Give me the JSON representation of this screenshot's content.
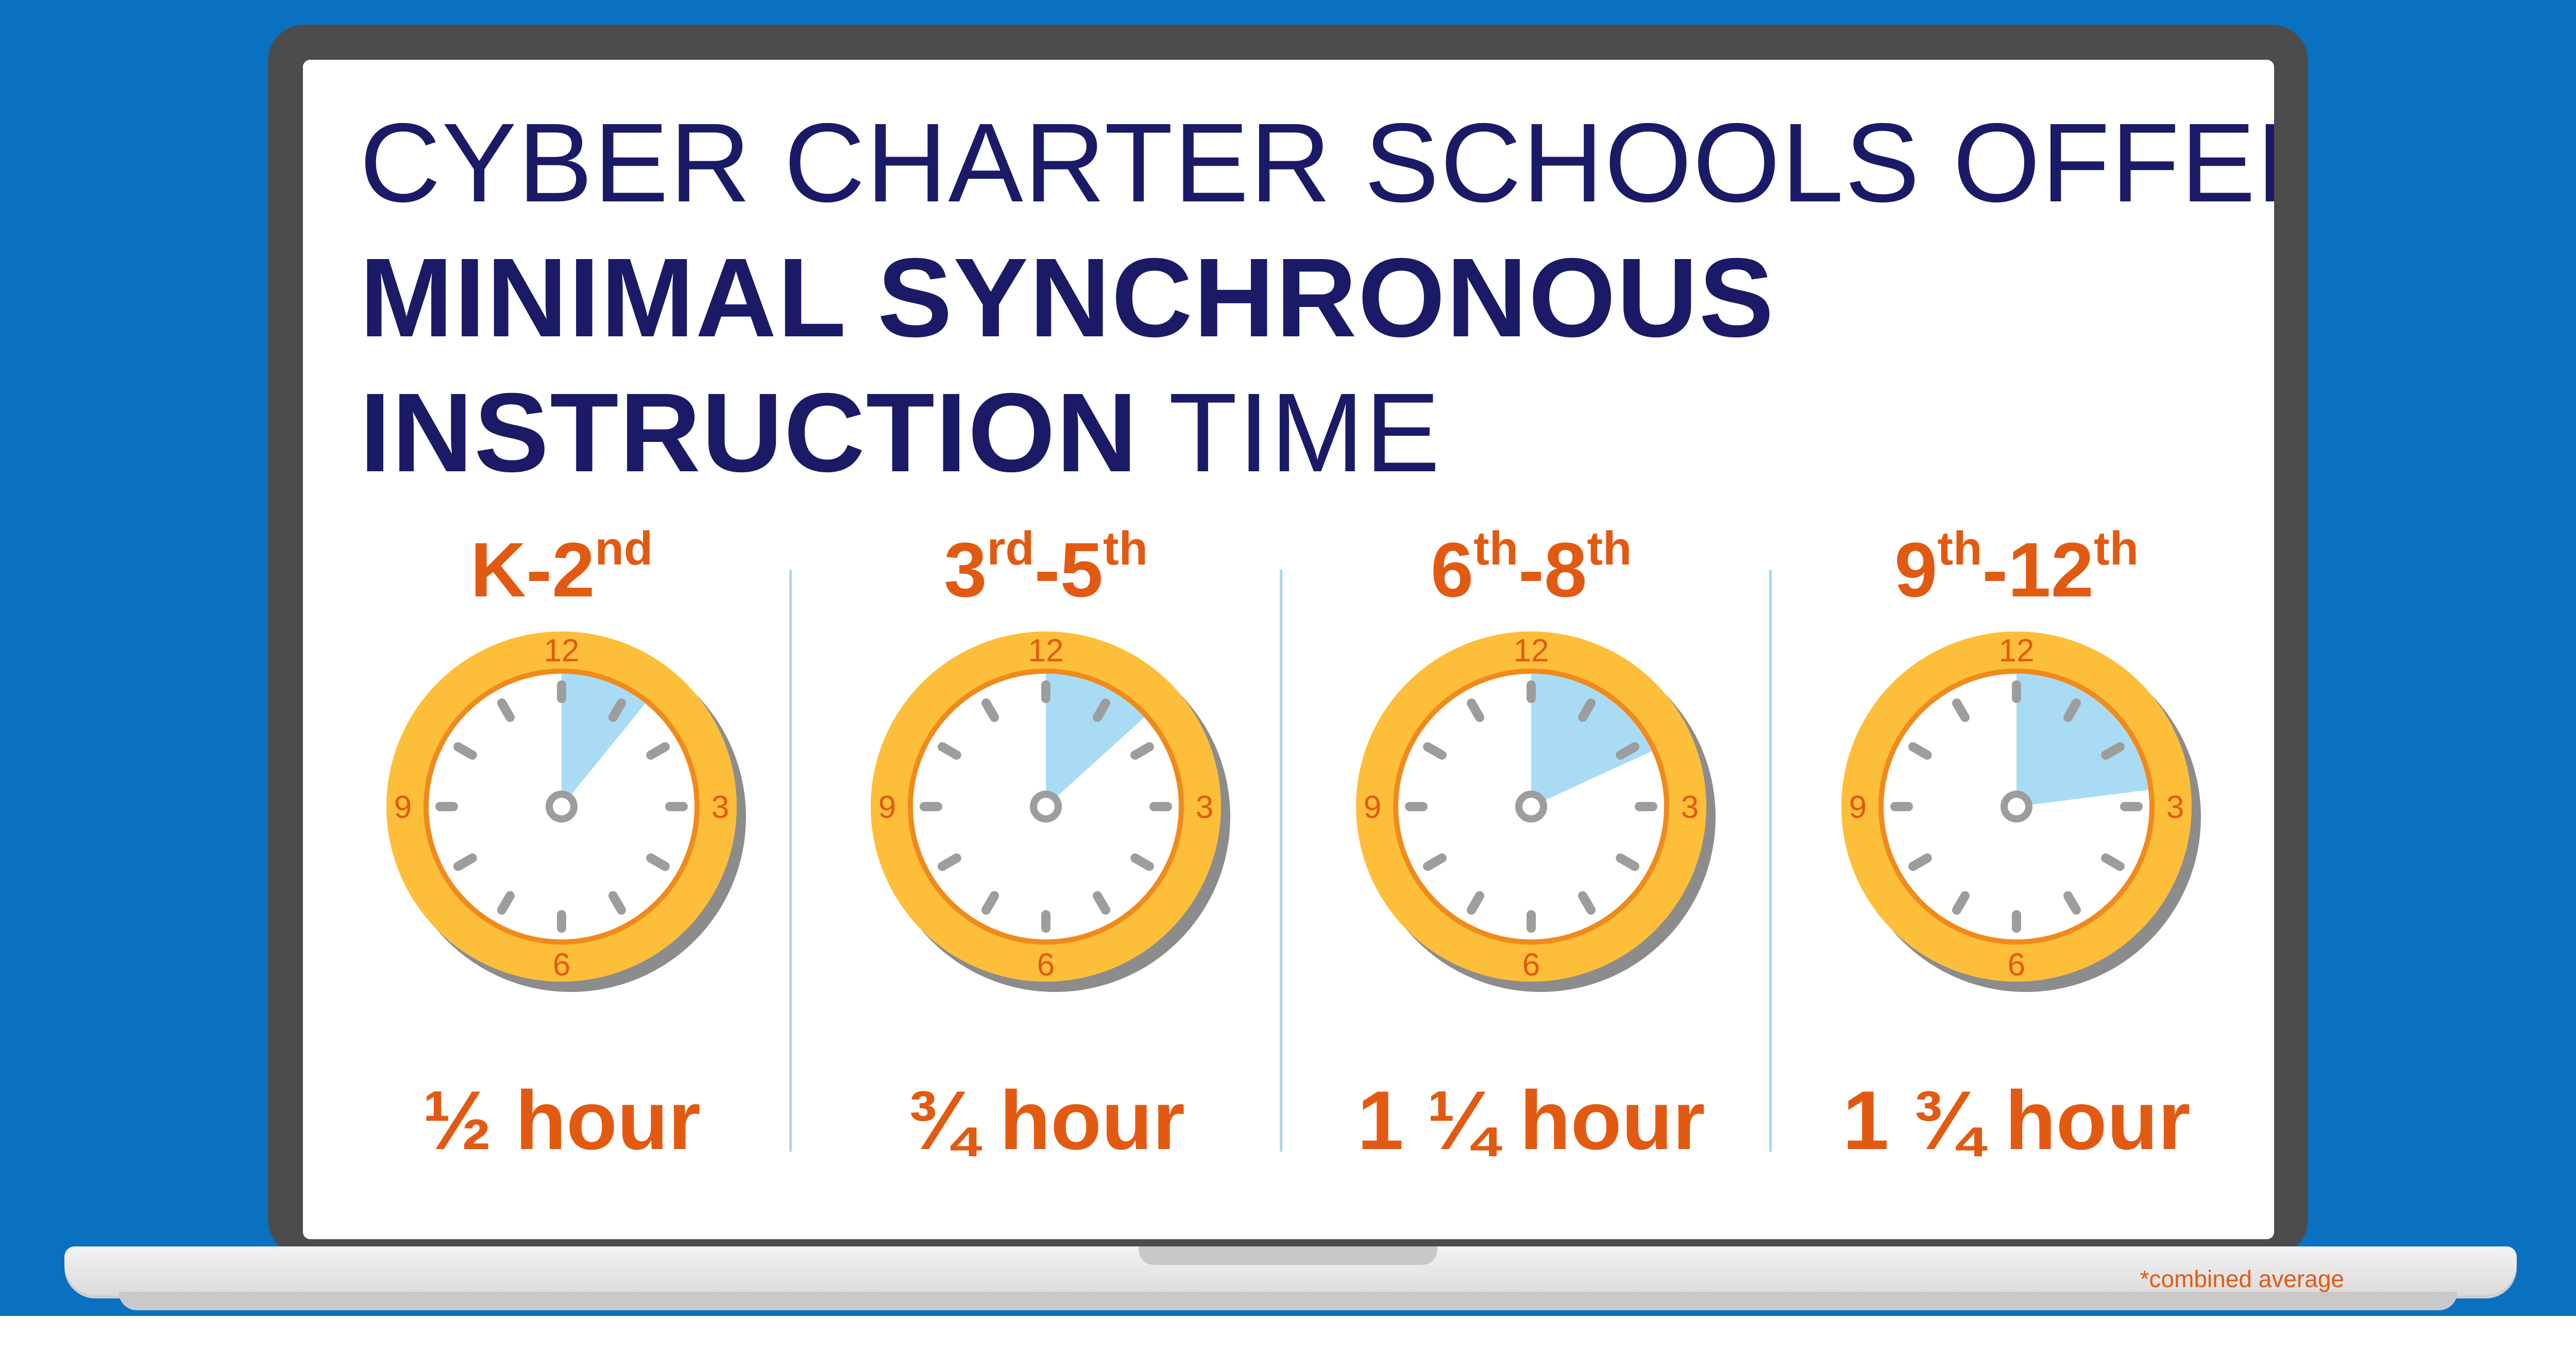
{
  "title": {
    "line1": "CYBER CHARTER SCHOOLS OFFER",
    "line2": "MINIMAL SYNCHRONOUS",
    "line3_bold": "INSTRUCTION",
    "line3_light": "TIME"
  },
  "groups": [
    {
      "grade_a": "K-2",
      "sup_a": "nd",
      "grade_sep": "",
      "grade_b": "",
      "sup_b": "",
      "duration": "½ hour",
      "hours": 0.5
    },
    {
      "grade_a": "3",
      "sup_a": "rd",
      "grade_sep": "-",
      "grade_b": "5",
      "sup_b": "th",
      "duration": "¾ hour",
      "hours": 0.75
    },
    {
      "grade_a": "6",
      "sup_a": "th",
      "grade_sep": "-",
      "grade_b": "8",
      "sup_b": "th",
      "duration": "1 ¼ hour",
      "hours": 1.25
    },
    {
      "grade_a": "9",
      "sup_a": "th",
      "grade_sep": "-",
      "grade_b": "12",
      "sup_b": "th",
      "duration": "1 ¾ hour",
      "hours": 1.75
    }
  ],
  "clock_numbers": {
    "n12": "12",
    "n3": "3",
    "n6": "6",
    "n9": "9"
  },
  "footnote": "*combined average",
  "colors": {
    "background": "#0a71c1",
    "title": "#1b1a66",
    "accent": "#e25a12",
    "clock_rim": "#fdbe3a",
    "clock_inner_ring": "#f08a1c",
    "clock_wedge": "#a9dcf4",
    "tick": "#9d9d9d"
  }
}
